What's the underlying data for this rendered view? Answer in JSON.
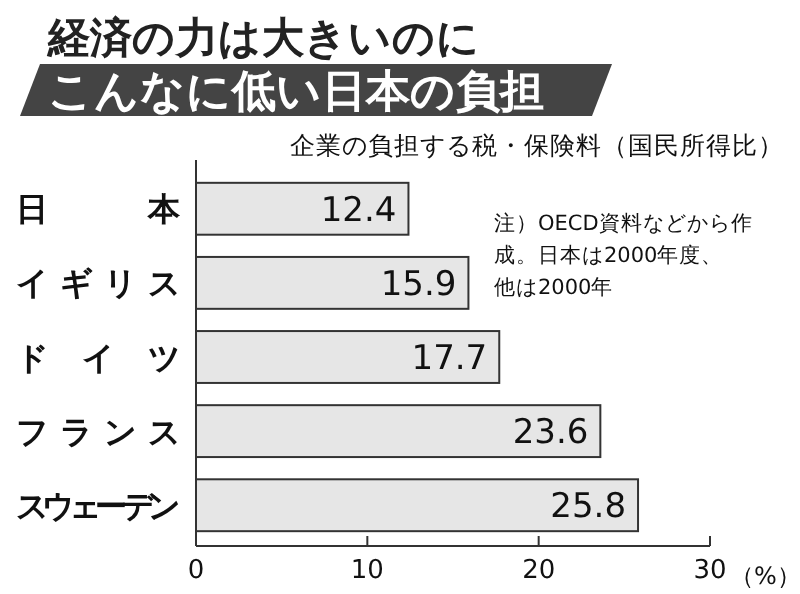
{
  "chart_data": {
    "type": "bar",
    "orientation": "horizontal",
    "title": "経済の力は大きいのに",
    "subtitle": "こんなに低い日本の負担",
    "annotations": [
      "企業の負担する税・保険料（国民所得比）",
      "注）OECD資料などから作成。日本は2000年度、他は2000年"
    ],
    "xlabel": "（%）",
    "categories": [
      "日本",
      "イギリス",
      "ドイツ",
      "フランス",
      "スウェーデン"
    ],
    "values": [
      12.4,
      15.9,
      17.7,
      23.6,
      25.8
    ],
    "color": "#e6e6e6",
    "xlim": [
      0,
      30
    ],
    "xticks": [
      0,
      10,
      20,
      30
    ],
    "data_labels": true,
    "grid": false
  }
}
